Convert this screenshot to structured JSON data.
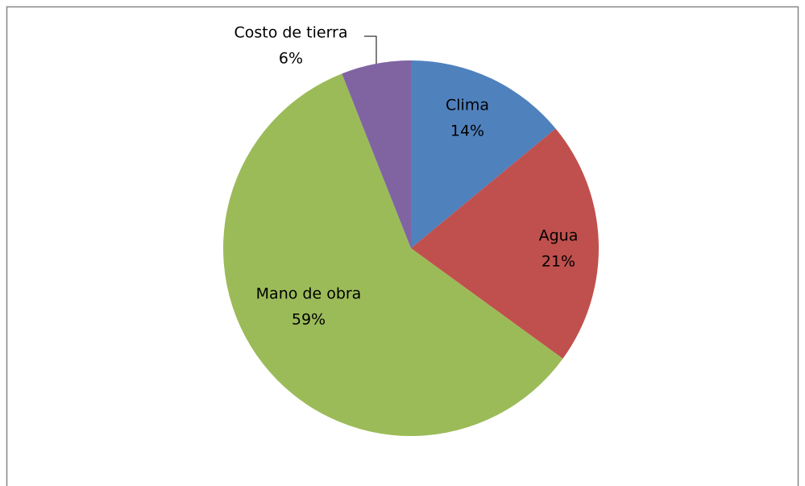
{
  "chart_data": {
    "type": "pie",
    "categories": [
      "Clima",
      "Agua",
      "Mano de obra",
      "Costo de tierra"
    ],
    "values": [
      14,
      21,
      59,
      6
    ],
    "value_labels": [
      "14%",
      "21%",
      "59%",
      "6%"
    ],
    "colors": [
      "#4f81bd",
      "#c0504d",
      "#9bbb59",
      "#8064a2"
    ]
  }
}
